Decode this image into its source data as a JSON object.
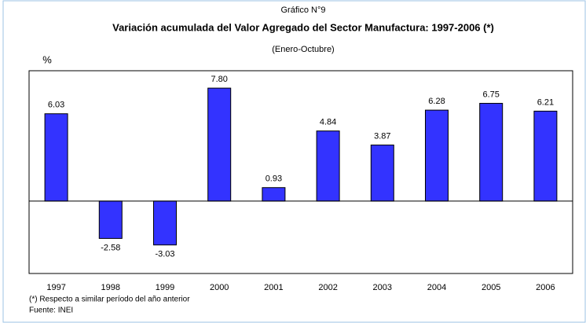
{
  "chart_data": {
    "type": "bar",
    "header": "Gráfico N°9",
    "title": "Variación acumulada del Valor Agregado del Sector Manufactura: 1997-2006 (*)",
    "subtitle": "(Enero-Octubre)",
    "y_label": "%",
    "categories": [
      "1997",
      "1998",
      "1999",
      "2000",
      "2001",
      "2002",
      "2003",
      "2004",
      "2005",
      "2006"
    ],
    "values": [
      6.03,
      -2.58,
      -3.03,
      7.8,
      0.93,
      4.84,
      3.87,
      6.28,
      6.75,
      6.21
    ],
    "value_labels": [
      "6.03",
      "-2.58",
      "-3.03",
      "7.80",
      "0.93",
      "4.84",
      "3.87",
      "6.28",
      "6.75",
      "6.21"
    ],
    "color": "#3333ff",
    "ylim": [
      -5,
      9
    ],
    "notes": [
      "(*) Respecto a similar período del año anterior",
      "Fuente: INEI"
    ]
  }
}
